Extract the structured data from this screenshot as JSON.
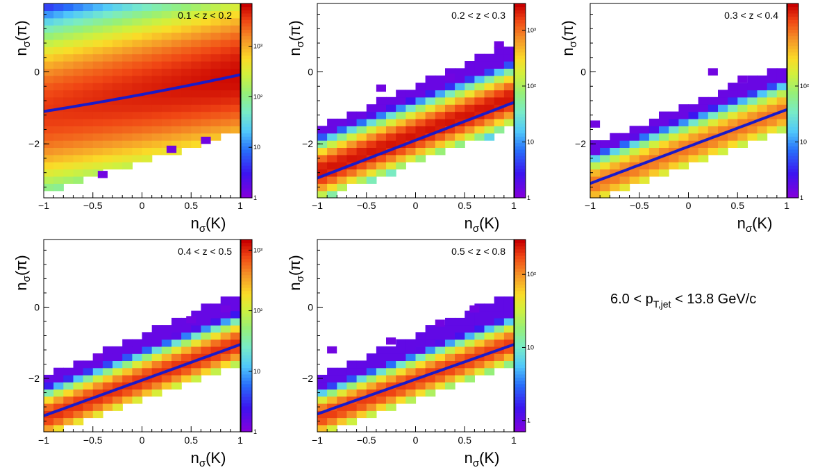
{
  "figure": {
    "label": {
      "prefix": "6.0 < p",
      "subscript": "T,jet",
      "suffix": " < 13.8 GeV/c"
    }
  },
  "axes": {
    "x_title": {
      "main": "n",
      "sub": "σ",
      "tail": "(K)"
    },
    "y_title": {
      "main": "n",
      "sub": "σ",
      "tail": "(π)"
    }
  },
  "chart_data": [
    {
      "type": "heatmap",
      "title": "0.1 < z < 0.2",
      "xlim": [
        -1,
        1
      ],
      "ylim": [
        -3.5,
        1.9
      ],
      "x_ticks": [
        -1,
        -0.5,
        0,
        0.5,
        1
      ],
      "x_tick_labels": [
        "−1",
        "−0.5",
        "0",
        "0.5",
        "1"
      ],
      "y_ticks": [
        -2,
        0
      ],
      "y_tick_labels": [
        "−2",
        "0"
      ],
      "colorbar": {
        "log": true,
        "range": [
          1,
          7000
        ],
        "ticks": [
          1,
          10,
          100,
          1000
        ],
        "tick_labels": [
          "1",
          "10",
          "10²",
          "10³"
        ]
      },
      "fit_line": {
        "x": [
          -1,
          1
        ],
        "y": [
          -1.1,
          -0.08
        ],
        "curvature": -0.15
      },
      "band": {
        "center_slope": 0.5,
        "center_intercept": -0.6,
        "upper_slope": 0.3,
        "upper_intercept": 2.2,
        "lower_slope": 0.85,
        "lower_intercept": -2.5,
        "peak_log": 3.6,
        "sigma": 1.6,
        "x_peak_shift": 0.35
      },
      "outliers": [
        [
          0.3,
          -2.15
        ],
        [
          0.65,
          -1.9
        ],
        [
          -0.4,
          -2.85
        ]
      ],
      "grid": false
    },
    {
      "type": "heatmap",
      "title": "0.2 < z < 0.3",
      "xlim": [
        -1,
        1
      ],
      "ylim": [
        -3.5,
        1.9
      ],
      "x_ticks": [
        -1,
        -0.5,
        0,
        0.5,
        1
      ],
      "x_tick_labels": [
        "−1",
        "−0.5",
        "0",
        "0.5",
        "1"
      ],
      "y_ticks": [
        -2,
        0
      ],
      "y_tick_labels": [
        "−2",
        "0"
      ],
      "colorbar": {
        "log": true,
        "range": [
          1,
          3000
        ],
        "ticks": [
          1,
          10,
          100,
          1000
        ],
        "tick_labels": [
          "1",
          "10",
          "10²",
          "10³"
        ]
      },
      "fit_line": {
        "x": [
          -1,
          1
        ],
        "y": [
          -2.95,
          -0.85
        ],
        "curvature": 0
      },
      "band": {
        "center_slope": 1.05,
        "center_intercept": -1.75,
        "upper_slope": 1.2,
        "upper_intercept": -0.35,
        "lower_slope": 1.0,
        "lower_intercept": -2.55,
        "peak_log": 3.4,
        "sigma": 0.55,
        "x_peak_shift": 0
      },
      "outliers": [
        [
          -0.35,
          -0.45
        ],
        [
          0.35,
          -0.15
        ],
        [
          0.85,
          0.75
        ]
      ],
      "grid": false
    },
    {
      "type": "heatmap",
      "title": "0.3 < z < 0.4",
      "xlim": [
        -1,
        1
      ],
      "ylim": [
        -3.5,
        1.9
      ],
      "x_ticks": [
        -1,
        -0.5,
        0,
        0.5,
        1
      ],
      "x_tick_labels": [
        "−1",
        "−0.5",
        "0",
        "0.5",
        "1"
      ],
      "y_ticks": [
        -2,
        0
      ],
      "y_tick_labels": [
        "−2",
        "0"
      ],
      "colorbar": {
        "log": true,
        "range": [
          1,
          3000
        ],
        "ticks": [
          1,
          10,
          100
        ],
        "tick_labels": [
          "1",
          "10",
          "10²"
        ]
      },
      "fit_line": {
        "x": [
          -1,
          1
        ],
        "y": [
          -3.1,
          -1.05
        ],
        "curvature": 0
      },
      "band": {
        "center_slope": 1.05,
        "center_intercept": -2.1,
        "upper_slope": 1.15,
        "upper_intercept": -0.9,
        "lower_slope": 1.0,
        "lower_intercept": -2.6,
        "peak_log": 3.0,
        "sigma": 0.5,
        "x_peak_shift": 0
      },
      "outliers": [
        [
          -0.95,
          -1.45
        ],
        [
          0.25,
          -0.0
        ],
        [
          0.55,
          -0.2
        ]
      ],
      "grid": false
    },
    {
      "type": "heatmap",
      "title": "0.4 < z < 0.5",
      "xlim": [
        -1,
        1
      ],
      "ylim": [
        -3.5,
        1.9
      ],
      "x_ticks": [
        -1,
        -0.5,
        0,
        0.5,
        1
      ],
      "x_tick_labels": [
        "−1",
        "−0.5",
        "0",
        "0.5",
        "1"
      ],
      "y_ticks": [
        -2,
        0
      ],
      "y_tick_labels": [
        "−2",
        "0"
      ],
      "colorbar": {
        "log": true,
        "range": [
          1,
          1500
        ],
        "ticks": [
          1,
          10,
          100,
          1000
        ],
        "tick_labels": [
          "1",
          "10",
          "10²",
          "10³"
        ]
      },
      "fit_line": {
        "x": [
          -1,
          1
        ],
        "y": [
          -3.05,
          -1.05
        ],
        "curvature": 0
      },
      "band": {
        "center_slope": 1.05,
        "center_intercept": -2.05,
        "upper_slope": 1.2,
        "upper_intercept": -0.75,
        "lower_slope": 1.0,
        "lower_intercept": -2.6,
        "peak_log": 3.0,
        "sigma": 0.5,
        "x_peak_shift": 0
      },
      "outliers": [
        [
          -0.45,
          -1.4
        ],
        [
          0.5,
          -0.35
        ],
        [
          0.85,
          -0.05
        ]
      ],
      "grid": false
    },
    {
      "type": "heatmap",
      "title": "0.5 < z < 0.8",
      "xlim": [
        -1,
        1
      ],
      "ylim": [
        -3.5,
        1.9
      ],
      "x_ticks": [
        -1,
        -0.5,
        0,
        0.5,
        1
      ],
      "x_tick_labels": [
        "−1",
        "−0.5",
        "0",
        "0.5",
        "1"
      ],
      "y_ticks": [
        -2,
        0
      ],
      "y_tick_labels": [
        "−2",
        "0"
      ],
      "colorbar": {
        "log": true,
        "range": [
          0.7,
          300
        ],
        "ticks": [
          1,
          10,
          100
        ],
        "tick_labels": [
          "1",
          "10",
          "10²"
        ]
      },
      "fit_line": {
        "x": [
          -1,
          1
        ],
        "y": [
          -3.0,
          -1.05
        ],
        "curvature": 0
      },
      "band": {
        "center_slope": 1.05,
        "center_intercept": -2.05,
        "upper_slope": 1.2,
        "upper_intercept": -0.75,
        "lower_slope": 1.0,
        "lower_intercept": -2.6,
        "peak_log": 2.3,
        "sigma": 0.5,
        "x_peak_shift": 0
      },
      "outliers": [
        [
          -0.85,
          -1.2
        ],
        [
          0.25,
          -0.45
        ],
        [
          0.6,
          -0.05
        ],
        [
          -0.25,
          -0.95
        ]
      ],
      "grid": false
    }
  ]
}
